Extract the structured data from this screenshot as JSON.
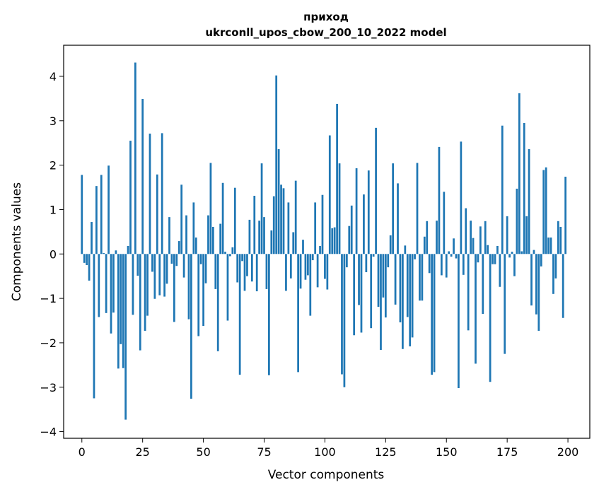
{
  "chart_data": {
    "type": "bar",
    "title": "приход",
    "subtitle": "ukrconll_upos_cbow_200_10_2022 model",
    "xlabel": "Vector components",
    "ylabel": "Components values",
    "xlim": [
      -7.5,
      209
    ],
    "ylim": [
      -4.15,
      4.7
    ],
    "xticks": [
      0,
      25,
      50,
      75,
      100,
      125,
      150,
      175,
      200
    ],
    "yticks": [
      -4,
      -3,
      -2,
      -1,
      0,
      1,
      2,
      3,
      4
    ],
    "grid": false,
    "bar_color": "#1f77b4",
    "x": [
      0,
      1,
      2,
      3,
      4,
      5,
      6,
      7,
      8,
      9,
      10,
      11,
      12,
      13,
      14,
      15,
      16,
      17,
      18,
      19,
      20,
      21,
      22,
      23,
      24,
      25,
      26,
      27,
      28,
      29,
      30,
      31,
      32,
      33,
      34,
      35,
      36,
      37,
      38,
      39,
      40,
      41,
      42,
      43,
      44,
      45,
      46,
      47,
      48,
      49,
      50,
      51,
      52,
      53,
      54,
      55,
      56,
      57,
      58,
      59,
      60,
      61,
      62,
      63,
      64,
      65,
      66,
      67,
      68,
      69,
      70,
      71,
      72,
      73,
      74,
      75,
      76,
      77,
      78,
      79,
      80,
      81,
      82,
      83,
      84,
      85,
      86,
      87,
      88,
      89,
      90,
      91,
      92,
      93,
      94,
      95,
      96,
      97,
      98,
      99,
      100,
      101,
      102,
      103,
      104,
      105,
      106,
      107,
      108,
      109,
      110,
      111,
      112,
      113,
      114,
      115,
      116,
      117,
      118,
      119,
      120,
      121,
      122,
      123,
      124,
      125,
      126,
      127,
      128,
      129,
      130,
      131,
      132,
      133,
      134,
      135,
      136,
      137,
      138,
      139,
      140,
      141,
      142,
      143,
      144,
      145,
      146,
      147,
      148,
      149,
      150,
      151,
      152,
      153,
      154,
      155,
      156,
      157,
      158,
      159,
      160,
      161,
      162,
      163,
      164,
      165,
      166,
      167,
      168,
      169,
      170,
      171,
      172,
      173,
      174,
      175,
      176,
      177,
      178,
      179,
      180,
      181,
      182,
      183,
      184,
      185,
      186,
      187,
      188,
      189,
      190,
      191,
      192,
      193,
      194,
      195,
      196,
      197,
      198,
      199
    ],
    "values": [
      1.78,
      -0.2,
      -0.25,
      -0.6,
      0.72,
      -3.25,
      1.53,
      -1.42,
      1.78,
      0.02,
      -1.33,
      1.99,
      -1.79,
      -1.32,
      0.08,
      -2.58,
      -2.03,
      -2.57,
      -3.73,
      0.18,
      2.55,
      -1.37,
      4.31,
      -0.49,
      -2.17,
      3.49,
      -1.73,
      -1.39,
      2.71,
      -0.4,
      -1.01,
      1.79,
      -0.93,
      2.72,
      -0.96,
      -0.67,
      0.83,
      -0.22,
      -1.53,
      -0.27,
      0.29,
      1.56,
      -0.53,
      0.87,
      -1.47,
      -3.26,
      1.16,
      0.37,
      -1.85,
      -0.23,
      -1.62,
      -0.66,
      0.87,
      2.05,
      0.61,
      -0.79,
      -2.19,
      0.68,
      1.6,
      0.05,
      -1.5,
      -0.05,
      0.15,
      1.49,
      -0.64,
      -2.72,
      -0.16,
      -0.83,
      -0.5,
      0.77,
      -0.62,
      1.31,
      -0.84,
      0.75,
      2.04,
      0.83,
      -0.79,
      -2.73,
      0.53,
      1.3,
      4.02,
      2.36,
      1.56,
      1.48,
      -0.83,
      1.16,
      -0.55,
      0.49,
      1.65,
      -2.66,
      -0.78,
      0.32,
      -0.58,
      -0.48,
      -1.39,
      -0.14,
      1.16,
      -0.75,
      0.18,
      1.33,
      -0.56,
      -0.8,
      2.67,
      0.58,
      0.6,
      3.38,
      2.04,
      -2.71,
      -3.0,
      -0.3,
      0.63,
      1.09,
      -1.83,
      1.93,
      -1.15,
      -1.77,
      1.34,
      -0.41,
      1.88,
      -1.67,
      -0.06,
      2.84,
      -1.19,
      -2.16,
      -0.98,
      -1.43,
      -0.3,
      0.42,
      2.04,
      -1.14,
      1.59,
      -1.54,
      -2.14,
      0.19,
      -1.42,
      -2.08,
      -1.88,
      -0.12,
      2.05,
      -1.05,
      -1.05,
      0.39,
      0.74,
      -0.43,
      -2.72,
      -2.66,
      0.75,
      2.41,
      -0.48,
      1.4,
      -0.53,
      0.06,
      -0.06,
      0.35,
      -0.1,
      -3.02,
      2.53,
      -0.47,
      1.03,
      -1.72,
      0.75,
      0.36,
      -2.47,
      -0.19,
      0.62,
      -1.35,
      0.74,
      0.2,
      -2.88,
      -0.23,
      -0.23,
      0.18,
      -0.74,
      2.89,
      -2.25,
      0.85,
      -0.08,
      0.05,
      -0.5,
      1.47,
      3.62,
      0.06,
      2.95,
      0.85,
      2.36,
      -1.16,
      0.09,
      -1.36,
      -1.73,
      -0.28,
      1.89,
      1.95,
      0.37,
      0.37,
      -0.9,
      -0.55,
      0.74,
      0.61,
      -1.44,
      1.74
    ]
  }
}
